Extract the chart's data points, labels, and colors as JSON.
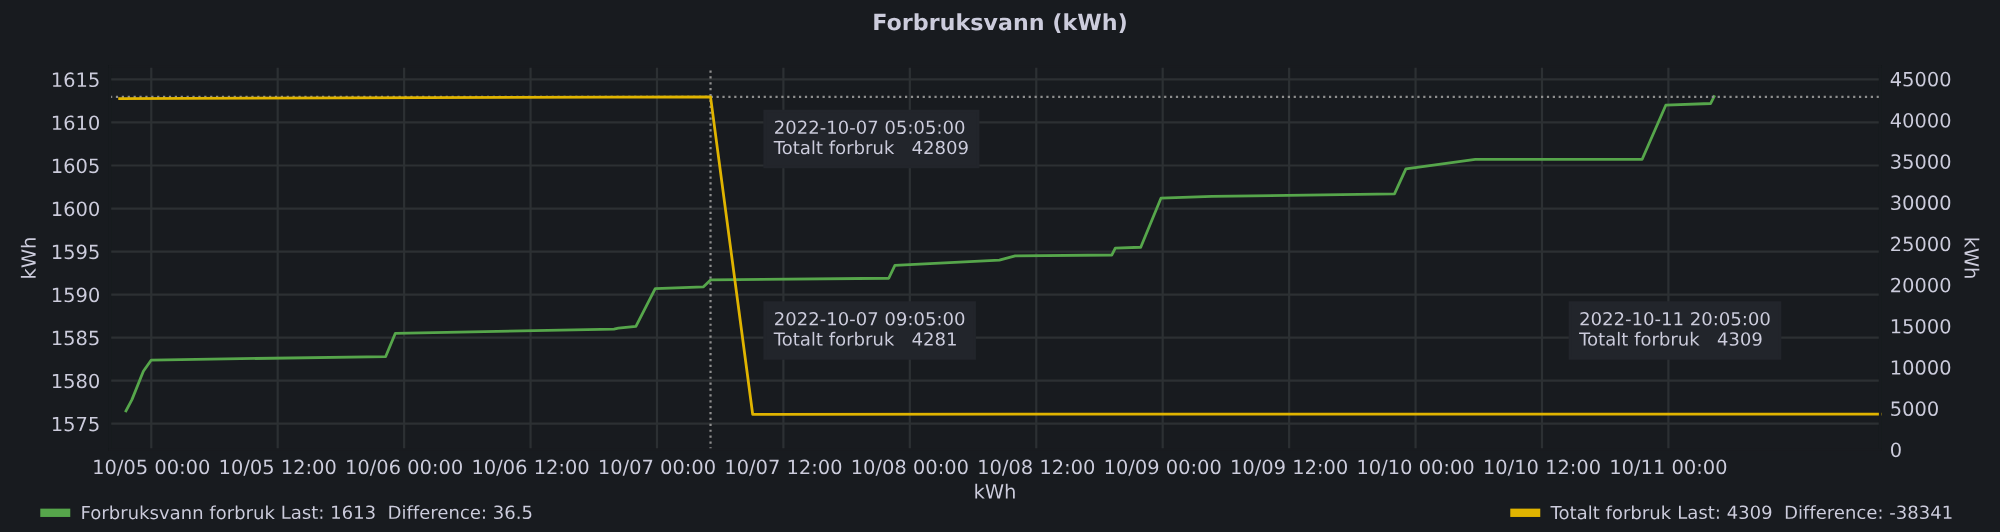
{
  "chart_data": {
    "type": "line",
    "title": "Forbruksvann (kWh)",
    "xlabel": "kWh",
    "ylabel": "kWh",
    "y2label": "kWh",
    "xlim": [
      "2022-10-04T20:05",
      "2022-10-11T20:05"
    ],
    "xticks": [
      {
        "value": "2022-10-05T00:00",
        "label": "10/05 00:00"
      },
      {
        "value": "2022-10-05T12:00",
        "label": "10/05 12:00"
      },
      {
        "value": "2022-10-06T00:00",
        "label": "10/06 00:00"
      },
      {
        "value": "2022-10-06T12:00",
        "label": "10/06 12:00"
      },
      {
        "value": "2022-10-07T00:00",
        "label": "10/07 00:00"
      },
      {
        "value": "2022-10-07T12:00",
        "label": "10/07 12:00"
      },
      {
        "value": "2022-10-08T00:00",
        "label": "10/08 00:00"
      },
      {
        "value": "2022-10-08T12:00",
        "label": "10/08 12:00"
      },
      {
        "value": "2022-10-09T00:00",
        "label": "10/09 00:00"
      },
      {
        "value": "2022-10-09T12:00",
        "label": "10/09 12:00"
      },
      {
        "value": "2022-10-10T00:00",
        "label": "10/10 00:00"
      },
      {
        "value": "2022-10-10T12:00",
        "label": "10/10 12:00"
      },
      {
        "value": "2022-10-11T00:00",
        "label": "10/11 00:00"
      }
    ],
    "ylim": [
      1572,
      1616.5
    ],
    "yticks": [
      1575,
      1580,
      1585,
      1590,
      1595,
      1600,
      1605,
      1610,
      1615
    ],
    "y2lim": [
      0,
      46500
    ],
    "y2ticks": [
      0,
      5000,
      10000,
      15000,
      20000,
      25000,
      30000,
      35000,
      40000,
      45000
    ],
    "grid": true,
    "legend": "bottom",
    "marker": "none",
    "line_style": "solid",
    "series": [
      {
        "name": "Forbruksvann forbruk",
        "color": "#56a64b",
        "x": [
          "2022-10-04T21:36",
          "2022-10-04T22:10",
          "2022-10-04T23:15",
          "2022-10-05T00:00",
          "2022-10-05T22:15",
          "2022-10-05T23:10",
          "2022-10-06T19:55",
          "2022-10-06T20:20",
          "2022-10-06T22:00",
          "2022-10-06T23:50",
          "2022-10-07T04:25",
          "2022-10-07T05:05",
          "2022-10-07T22:00",
          "2022-10-07T22:35",
          "2022-10-08T08:30",
          "2022-10-08T10:00",
          "2022-10-08T19:10",
          "2022-10-08T19:30",
          "2022-10-08T21:55",
          "2022-10-08T23:50",
          "2022-10-09T04:40",
          "2022-10-09T22:00",
          "2022-10-09T23:05",
          "2022-10-10T00:50",
          "2022-10-10T05:40",
          "2022-10-10T21:30",
          "2022-10-10T23:45",
          "2022-10-11T04:00",
          "2022-10-11T04:20"
        ],
        "values": [
          1576.5,
          1577.8,
          1581.1,
          1582.4,
          1582.8,
          1585.5,
          1586.0,
          1586.1,
          1586.3,
          1590.7,
          1590.9,
          1591.7,
          1591.9,
          1593.4,
          1594.0,
          1594.5,
          1594.6,
          1595.4,
          1595.5,
          1601.2,
          1601.4,
          1601.7,
          1604.6,
          1604.9,
          1605.7,
          1605.7,
          1612.0,
          1612.2,
          1613
        ]
      },
      {
        "name": "Totalt forbruk",
        "color": "#e0b400",
        "axis": "y2",
        "x": [
          "2022-10-04T21:00",
          "2022-10-05T18:00",
          "2022-10-07T05:05",
          "2022-10-07T09:05",
          "2022-10-08T12:00",
          "2022-10-11T20:05"
        ],
        "values": [
          42600,
          42700,
          42809,
          4281,
          4300,
          4309
        ]
      }
    ],
    "ref_lines": [
      {
        "axis": "y2",
        "value": 42809,
        "color": "#8e8e8e",
        "line_style": "dotted"
      },
      {
        "axis": "x",
        "value": "2022-10-07T05:05",
        "color": "#8e8e8e",
        "line_style": "dotted"
      }
    ],
    "annotations": [
      "Last: 1613  Difference: 36.5",
      "Last: 4309  Difference: -38341",
      "2022-10-07 05:05:00\nTotalt forbruk   42809",
      "2022-10-07 09:05:00\nTotalt forbruk   4281",
      "2022-10-11 20:05:00\nTotalt forbruk   4309"
    ]
  }
}
